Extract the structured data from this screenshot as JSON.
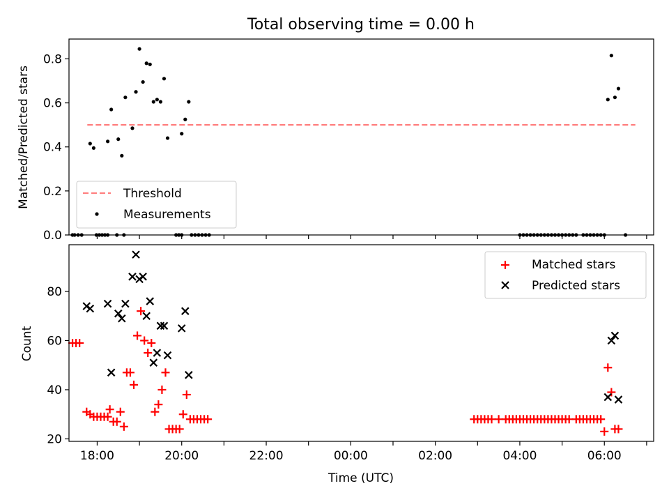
{
  "title": "Total observing time = 0.00 h",
  "x_axis": {
    "label": "Time (UTC)",
    "ticks": [
      "17:00",
      "18:00",
      "19:00",
      "20:00",
      "21:00",
      "22:00",
      "23:00",
      "00:00",
      "01:00",
      "02:00",
      "03:00",
      "04:00",
      "05:00",
      "06:00",
      "07:00"
    ],
    "tick_labels": [
      {
        "value": "18:00",
        "text": "18:00"
      },
      {
        "value": "20:00",
        "text": "20:00"
      },
      {
        "value": "22:00",
        "text": "22:00"
      },
      {
        "value": "00:00",
        "text": "00:00"
      },
      {
        "value": "02:00",
        "text": "02:00"
      },
      {
        "value": "04:00",
        "text": "04:00"
      },
      {
        "value": "06:00",
        "text": "06:00"
      }
    ]
  },
  "colors": {
    "threshold": "#ff7f7f",
    "measurements": "#000000",
    "matched": "#ff0000",
    "predicted": "#000000"
  },
  "chart_data": [
    {
      "type": "scatter",
      "panel": "top",
      "ylabel": "Matched/Predicted stars",
      "xlim": [
        "17:20",
        "07:10"
      ],
      "ylim": [
        0,
        0.89
      ],
      "yticks": [
        0.0,
        0.2,
        0.4,
        0.6,
        0.8
      ],
      "ytick_labels": [
        "0.0",
        "0.2",
        "0.4",
        "0.6",
        "0.8"
      ],
      "legend": {
        "position": "lower-left",
        "threshold_label": "Threshold",
        "measurements_label": "Measurements"
      },
      "threshold": {
        "name": "Threshold",
        "y": 0.5,
        "x_start": "17:46",
        "x_end": "06:44",
        "style": "dashed"
      },
      "series": [
        {
          "name": "Measurements",
          "points": [
            [
              "17:50",
              0.415
            ],
            [
              "17:55",
              0.395
            ],
            [
              "18:15",
              0.425
            ],
            [
              "18:20",
              0.57
            ],
            [
              "18:30",
              0.435
            ],
            [
              "18:35",
              0.36
            ],
            [
              "18:40",
              0.625
            ],
            [
              "18:50",
              0.485
            ],
            [
              "18:55",
              0.65
            ],
            [
              "19:00",
              0.845
            ],
            [
              "19:05",
              0.695
            ],
            [
              "19:10",
              0.78
            ],
            [
              "19:15",
              0.775
            ],
            [
              "19:20",
              0.605
            ],
            [
              "19:25",
              0.615
            ],
            [
              "19:30",
              0.605
            ],
            [
              "19:35",
              0.71
            ],
            [
              "19:40",
              0.44
            ],
            [
              "20:00",
              0.46
            ],
            [
              "20:05",
              0.525
            ],
            [
              "20:10",
              0.605
            ],
            [
              "06:05",
              0.615
            ],
            [
              "06:10",
              0.815
            ],
            [
              "06:15",
              0.625
            ],
            [
              "06:20",
              0.665
            ],
            [
              "17:25",
              0
            ],
            [
              "17:28",
              0
            ],
            [
              "17:33",
              0
            ],
            [
              "17:38",
              0
            ],
            [
              "17:59",
              0
            ],
            [
              "18:03",
              0
            ],
            [
              "18:07",
              0
            ],
            [
              "18:11",
              0
            ],
            [
              "18:15",
              0
            ],
            [
              "18:28",
              0
            ],
            [
              "18:38",
              0
            ],
            [
              "19:52",
              0
            ],
            [
              "19:56",
              0
            ],
            [
              "20:00",
              0
            ],
            [
              "20:14",
              0
            ],
            [
              "20:19",
              0
            ],
            [
              "20:24",
              0
            ],
            [
              "20:29",
              0
            ],
            [
              "20:34",
              0
            ],
            [
              "20:39",
              0
            ],
            [
              "04:00",
              0
            ],
            [
              "04:05",
              0
            ],
            [
              "04:10",
              0
            ],
            [
              "04:15",
              0
            ],
            [
              "04:20",
              0
            ],
            [
              "04:25",
              0
            ],
            [
              "04:30",
              0
            ],
            [
              "04:35",
              0
            ],
            [
              "04:40",
              0
            ],
            [
              "04:45",
              0
            ],
            [
              "04:50",
              0
            ],
            [
              "04:55",
              0
            ],
            [
              "05:00",
              0
            ],
            [
              "05:05",
              0
            ],
            [
              "05:10",
              0
            ],
            [
              "05:15",
              0
            ],
            [
              "05:20",
              0
            ],
            [
              "05:30",
              0
            ],
            [
              "05:35",
              0
            ],
            [
              "05:40",
              0
            ],
            [
              "05:45",
              0
            ],
            [
              "05:50",
              0
            ],
            [
              "05:55",
              0
            ],
            [
              "06:00",
              0
            ],
            [
              "06:30",
              0
            ]
          ]
        }
      ]
    },
    {
      "type": "scatter",
      "panel": "bottom",
      "xlabel": "Time (UTC)",
      "ylabel": "Count",
      "xlim": [
        "17:20",
        "07:10"
      ],
      "ylim": [
        19,
        99
      ],
      "yticks": [
        20,
        40,
        60,
        80
      ],
      "ytick_labels": [
        "20",
        "40",
        "60",
        "80"
      ],
      "legend": {
        "position": "top-right",
        "matched_label": "Matched stars",
        "predicted_label": "Predicted stars"
      },
      "series": [
        {
          "name": "Matched stars",
          "marker": "plus",
          "points": [
            [
              "17:25",
              59
            ],
            [
              "17:30",
              59
            ],
            [
              "17:35",
              59
            ],
            [
              "17:45",
              31
            ],
            [
              "17:50",
              30
            ],
            [
              "17:55",
              29
            ],
            [
              "18:00",
              29
            ],
            [
              "18:05",
              29
            ],
            [
              "18:10",
              29
            ],
            [
              "18:15",
              29
            ],
            [
              "18:18",
              32
            ],
            [
              "18:23",
              27
            ],
            [
              "18:28",
              27
            ],
            [
              "18:33",
              31
            ],
            [
              "18:38",
              25
            ],
            [
              "18:42",
              47
            ],
            [
              "18:47",
              47
            ],
            [
              "18:52",
              42
            ],
            [
              "18:57",
              62
            ],
            [
              "19:02",
              72
            ],
            [
              "19:07",
              60
            ],
            [
              "19:12",
              55
            ],
            [
              "19:17",
              59
            ],
            [
              "19:22",
              31
            ],
            [
              "19:27",
              34
            ],
            [
              "19:32",
              40
            ],
            [
              "19:37",
              47
            ],
            [
              "19:42",
              24
            ],
            [
              "19:47",
              24
            ],
            [
              "19:52",
              24
            ],
            [
              "19:57",
              24
            ],
            [
              "20:02",
              30
            ],
            [
              "20:07",
              38
            ],
            [
              "20:12",
              28
            ],
            [
              "20:17",
              28
            ],
            [
              "20:22",
              28
            ],
            [
              "20:27",
              28
            ],
            [
              "20:32",
              28
            ],
            [
              "20:37",
              28
            ],
            [
              "02:55",
              28
            ],
            [
              "03:00",
              28
            ],
            [
              "03:05",
              28
            ],
            [
              "03:10",
              28
            ],
            [
              "03:15",
              28
            ],
            [
              "03:20",
              28
            ],
            [
              "03:30",
              28
            ],
            [
              "03:40",
              28
            ],
            [
              "03:45",
              28
            ],
            [
              "03:50",
              28
            ],
            [
              "03:55",
              28
            ],
            [
              "04:00",
              28
            ],
            [
              "04:05",
              28
            ],
            [
              "04:10",
              28
            ],
            [
              "04:15",
              28
            ],
            [
              "04:20",
              28
            ],
            [
              "04:25",
              28
            ],
            [
              "04:30",
              28
            ],
            [
              "04:35",
              28
            ],
            [
              "04:40",
              28
            ],
            [
              "04:45",
              28
            ],
            [
              "04:50",
              28
            ],
            [
              "04:55",
              28
            ],
            [
              "05:00",
              28
            ],
            [
              "05:05",
              28
            ],
            [
              "05:10",
              28
            ],
            [
              "05:20",
              28
            ],
            [
              "05:25",
              28
            ],
            [
              "05:30",
              28
            ],
            [
              "05:35",
              28
            ],
            [
              "05:40",
              28
            ],
            [
              "05:45",
              28
            ],
            [
              "05:50",
              28
            ],
            [
              "05:55",
              28
            ],
            [
              "06:00",
              23
            ],
            [
              "06:05",
              49
            ],
            [
              "06:10",
              39
            ],
            [
              "06:15",
              24
            ],
            [
              "06:20",
              24
            ]
          ]
        },
        {
          "name": "Predicted stars",
          "marker": "cross",
          "points": [
            [
              "17:45",
              74
            ],
            [
              "17:50",
              73
            ],
            [
              "18:15",
              75
            ],
            [
              "18:20",
              47
            ],
            [
              "18:30",
              71
            ],
            [
              "18:35",
              69
            ],
            [
              "18:40",
              75
            ],
            [
              "18:50",
              86
            ],
            [
              "18:55",
              95
            ],
            [
              "19:00",
              85
            ],
            [
              "19:05",
              86
            ],
            [
              "19:10",
              70
            ],
            [
              "19:15",
              76
            ],
            [
              "19:20",
              51
            ],
            [
              "19:25",
              55
            ],
            [
              "19:30",
              66
            ],
            [
              "19:35",
              66
            ],
            [
              "19:40",
              54
            ],
            [
              "20:00",
              65
            ],
            [
              "20:05",
              72
            ],
            [
              "20:10",
              46
            ],
            [
              "06:05",
              37
            ],
            [
              "06:10",
              60
            ],
            [
              "06:15",
              62
            ],
            [
              "06:20",
              36
            ]
          ]
        }
      ]
    }
  ]
}
